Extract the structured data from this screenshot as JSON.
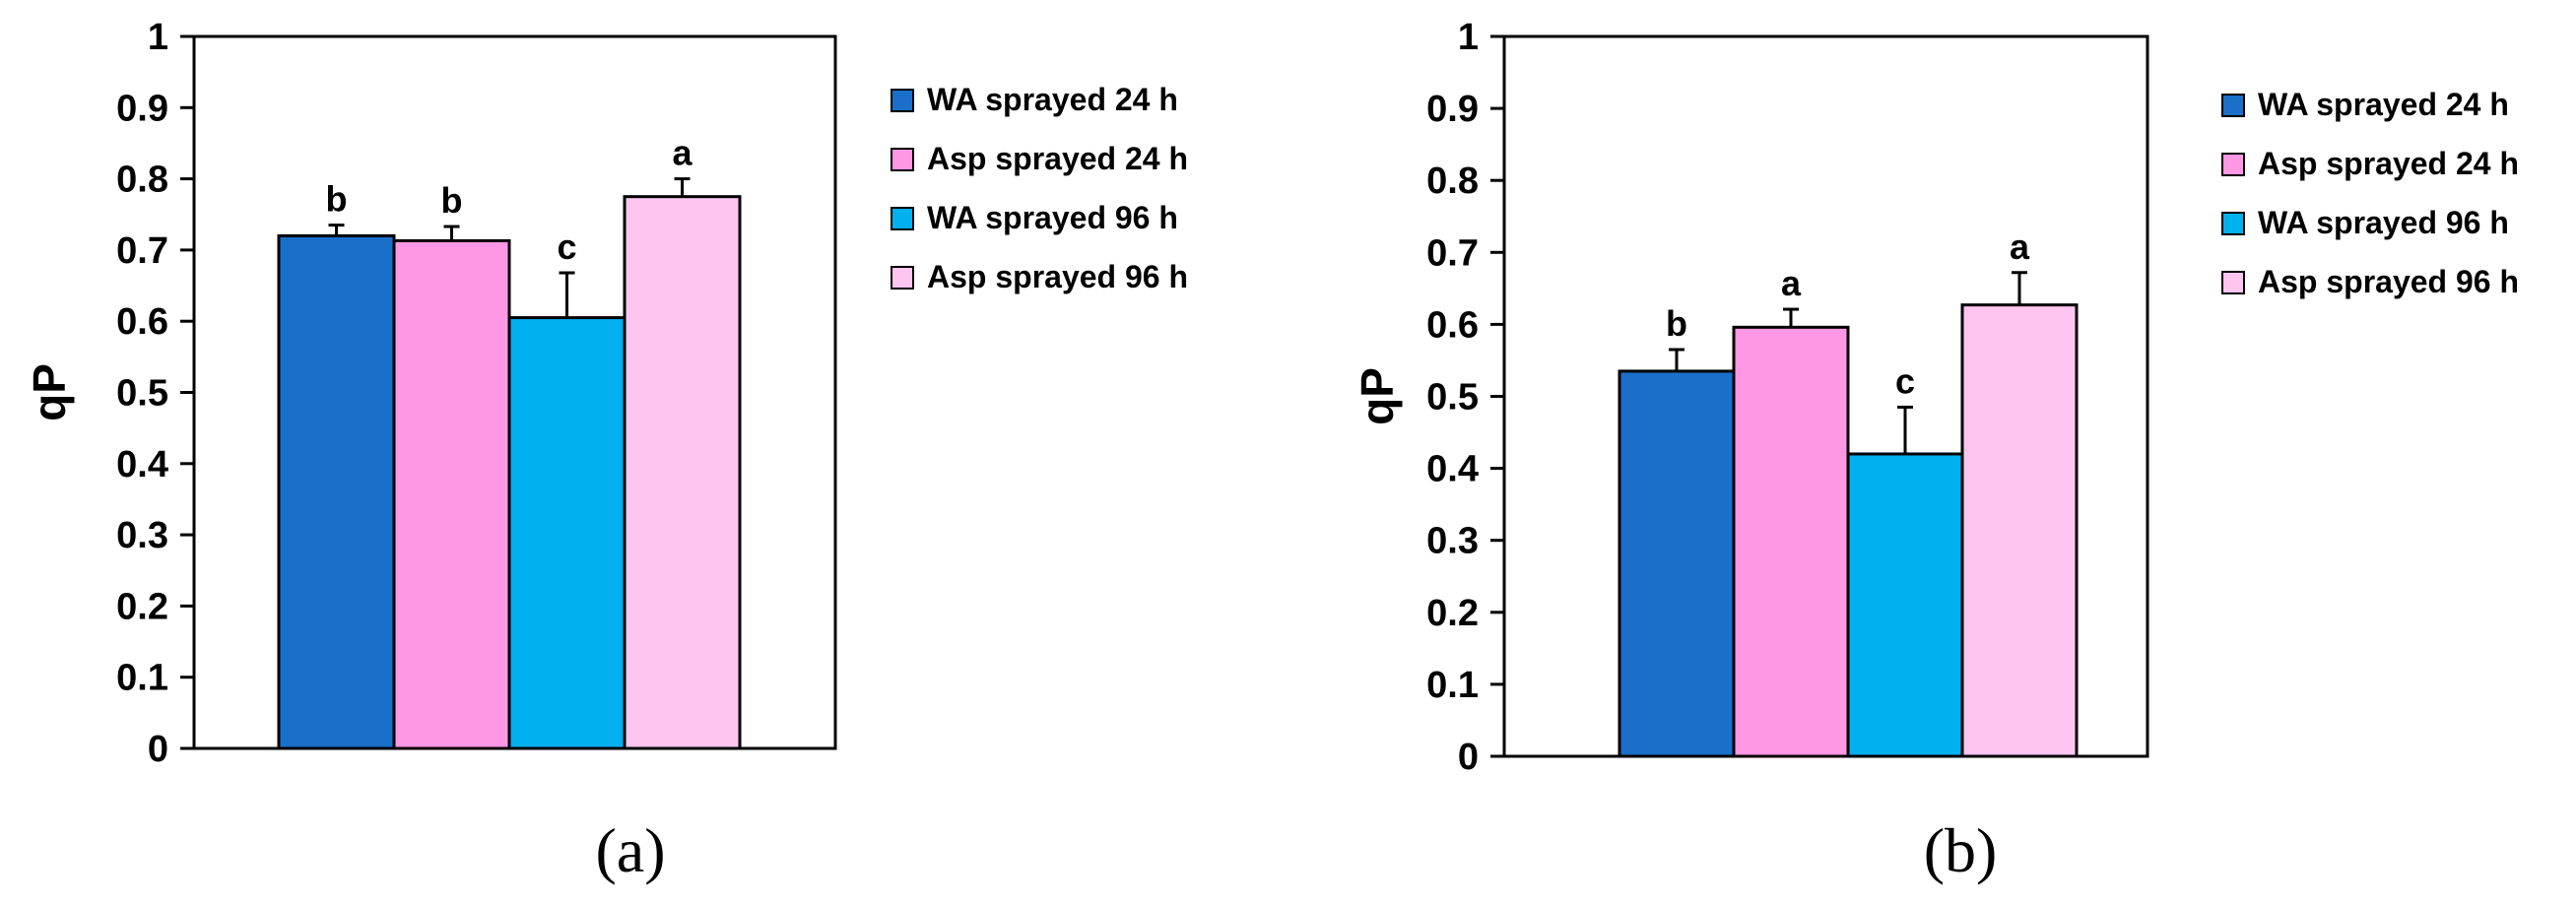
{
  "chart_data": [
    {
      "type": "bar",
      "panel_label": "(a)",
      "ylabel": "qP",
      "ylim": [
        0,
        1
      ],
      "yticks": [
        "0",
        "0.1",
        "0.2",
        "0.3",
        "0.4",
        "0.5",
        "0.6",
        "0.7",
        "0.8",
        "0.9",
        "1"
      ],
      "grid": false,
      "legend_position": "right",
      "series": [
        {
          "name": "WA sprayed 24 h",
          "value": 0.72,
          "error": 0.015,
          "letter": "b",
          "color": "#1a6fc8"
        },
        {
          "name": "Asp sprayed 24 h",
          "value": 0.713,
          "error": 0.02,
          "letter": "b",
          "color": "#ff97e4"
        },
        {
          "name": "WA sprayed 96 h",
          "value": 0.605,
          "error": 0.063,
          "letter": "c",
          "color": "#00b0ef"
        },
        {
          "name": "Asp sprayed 96 h",
          "value": 0.775,
          "error": 0.025,
          "letter": "a",
          "color": "#ffc5f1"
        }
      ]
    },
    {
      "type": "bar",
      "panel_label": "(b)",
      "ylabel": "qP",
      "ylim": [
        0,
        1
      ],
      "yticks": [
        "0",
        "0.1",
        "0.2",
        "0.3",
        "0.4",
        "0.5",
        "0.6",
        "0.7",
        "0.8",
        "0.9",
        "1"
      ],
      "grid": false,
      "legend_position": "right",
      "series": [
        {
          "name": "WA sprayed 24 h",
          "value": 0.535,
          "error": 0.03,
          "letter": "b",
          "color": "#1a6fc8"
        },
        {
          "name": "Asp sprayed 24 h",
          "value": 0.596,
          "error": 0.025,
          "letter": "a",
          "color": "#ff97e4"
        },
        {
          "name": "WA sprayed 96 h",
          "value": 0.42,
          "error": 0.065,
          "letter": "c",
          "color": "#00b0ef"
        },
        {
          "name": "Asp sprayed 96 h",
          "value": 0.627,
          "error": 0.045,
          "letter": "a",
          "color": "#ffc5f1"
        }
      ]
    }
  ]
}
